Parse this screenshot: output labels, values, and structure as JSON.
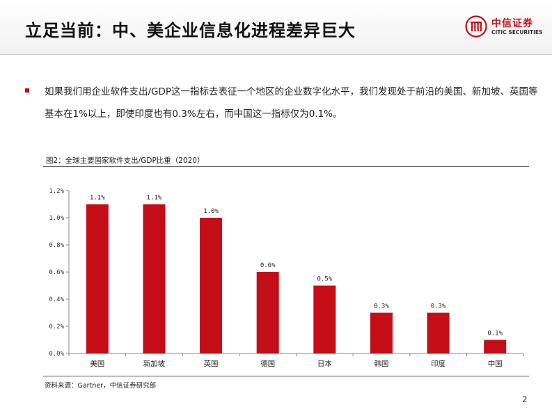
{
  "header": {
    "title": "立足当前：中、美企业信息化进程差异巨大",
    "logo_cn": "中信证券",
    "logo_en": "CITIC SECURITIES",
    "accent_color": "#c40d17"
  },
  "bullet": {
    "text": "如果我们用企业软件支出/GDP这一指标去表征一个地区的企业数字化水平，我们发现处于前沿的美国、新加坡、英国等基本在1%以上，即使印度也有0.3%左右，而中国这一指标仅为0.1%。"
  },
  "figure": {
    "title": "图2：全球主要国家软件支出/GDP比重（2020）",
    "source": "资料来源：Gartner，中信证券研究部"
  },
  "page_number": "2",
  "chart_data": {
    "type": "bar",
    "categories": [
      "美国",
      "新加坡",
      "英国",
      "德国",
      "日本",
      "韩国",
      "印度",
      "中国"
    ],
    "values": [
      1.1,
      1.1,
      1.0,
      0.6,
      0.5,
      0.3,
      0.3,
      0.1
    ],
    "data_labels": [
      "1.1%",
      "1.1%",
      "1.0%",
      "0.6%",
      "0.5%",
      "0.3%",
      "0.3%",
      "0.1%"
    ],
    "y_ticks": [
      0,
      0.2,
      0.4,
      0.6,
      0.8,
      1.0,
      1.2
    ],
    "y_tick_labels": [
      "0.0%",
      "0.2%",
      "0.4%",
      "0.6%",
      "0.8%",
      "1.0%",
      "1.2%"
    ],
    "ylim": [
      0,
      1.2
    ],
    "bar_color": "#c40d17",
    "grid": false
  }
}
